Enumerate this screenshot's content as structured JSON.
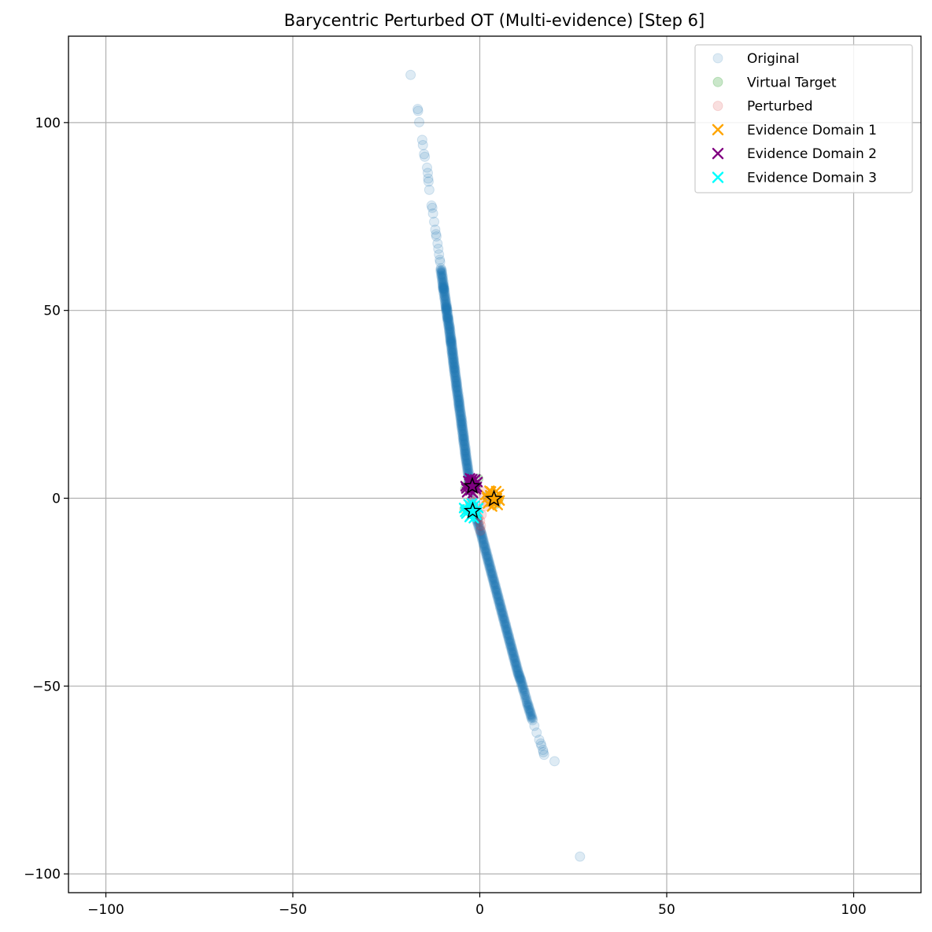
{
  "chart_data": {
    "type": "scatter",
    "title": "Barycentric Perturbed OT (Multi-evidence) [Step 6]",
    "xlabel": "",
    "ylabel": "",
    "xlim": [
      -110,
      118
    ],
    "ylim": [
      -105,
      123
    ],
    "xticks": [
      -100,
      -50,
      0,
      50,
      100
    ],
    "yticks": [
      -100,
      -50,
      0,
      50,
      100
    ],
    "xtick_labels": [
      "−100",
      "−50",
      "0",
      "50",
      "100"
    ],
    "ytick_labels": [
      "−100",
      "−50",
      "0",
      "50",
      "100"
    ],
    "grid": true,
    "legend_position": "top-right",
    "series": [
      {
        "name": "Original",
        "marker": "circle",
        "color": "#1f77b4",
        "opacity": 0.15,
        "points": [
          [
            -18.5,
            112.7
          ],
          [
            -16.6,
            103.6
          ],
          [
            -16.5,
            103.1
          ],
          [
            -16.2,
            100.1
          ],
          [
            -15.4,
            95.4
          ],
          [
            -15.2,
            94.0
          ],
          [
            -14.9,
            91.6
          ],
          [
            -14.7,
            90.9
          ],
          [
            -14.1,
            88.0
          ],
          [
            -13.9,
            86.6
          ],
          [
            -13.8,
            85.1
          ],
          [
            -13.7,
            84.3
          ],
          [
            -13.5,
            82.1
          ],
          [
            -12.9,
            77.9
          ],
          [
            -12.7,
            77.3
          ],
          [
            -12.5,
            75.8
          ],
          [
            -12.2,
            73.6
          ],
          [
            -11.9,
            71.5
          ],
          [
            -11.7,
            70.3
          ],
          [
            -11.6,
            69.7
          ],
          [
            -11.3,
            67.8
          ],
          [
            -11.1,
            66.4
          ],
          [
            -10.9,
            64.9
          ],
          [
            -10.7,
            63.5
          ],
          [
            -10.6,
            62.9
          ],
          [
            -10.4,
            61.2
          ],
          [
            -10.2,
            59.8
          ],
          [
            -10.0,
            58.4
          ],
          [
            -9.8,
            56.9
          ],
          [
            -9.7,
            56.0
          ],
          [
            -9.6,
            55.4
          ],
          [
            -9.4,
            54.0
          ],
          [
            -9.2,
            52.6
          ],
          [
            -9.0,
            51.2
          ],
          [
            -8.9,
            50.5
          ],
          [
            -8.8,
            49.7
          ],
          [
            -8.6,
            48.3
          ],
          [
            -8.5,
            47.6
          ],
          [
            -8.3,
            46.3
          ],
          [
            -8.1,
            45.2
          ],
          [
            -8.0,
            44.0
          ],
          [
            -7.8,
            42.7
          ],
          [
            -7.7,
            41.8
          ],
          [
            -7.6,
            41.0
          ],
          [
            -7.4,
            39.6
          ],
          [
            -7.3,
            38.5
          ],
          [
            -7.1,
            37.2
          ],
          [
            -7.0,
            36.0
          ],
          [
            -6.8,
            34.8
          ],
          [
            -6.7,
            33.7
          ],
          [
            -6.5,
            32.3
          ],
          [
            -6.3,
            31.0
          ],
          [
            -6.2,
            29.8
          ],
          [
            -6.0,
            28.5
          ],
          [
            -5.8,
            27.1
          ],
          [
            -5.6,
            25.8
          ],
          [
            -5.5,
            24.6
          ],
          [
            -5.3,
            23.3
          ],
          [
            -5.1,
            21.9
          ],
          [
            -4.9,
            20.6
          ],
          [
            -4.8,
            19.4
          ],
          [
            -4.6,
            18.1
          ],
          [
            -4.4,
            16.7
          ],
          [
            -4.3,
            15.5
          ],
          [
            -4.1,
            14.2
          ],
          [
            -3.9,
            12.8
          ],
          [
            -3.8,
            11.6
          ],
          [
            -3.6,
            10.3
          ],
          [
            -3.4,
            9.0
          ],
          [
            -3.2,
            7.6
          ],
          [
            -3.0,
            6.2
          ],
          [
            -2.8,
            4.9
          ],
          [
            -2.6,
            3.6
          ],
          [
            -1.2,
            -4.0
          ],
          [
            -0.8,
            -5.5
          ],
          [
            -0.4,
            -7.0
          ],
          [
            0.2,
            -8.8
          ],
          [
            0.6,
            -10.2
          ],
          [
            1.0,
            -11.8
          ],
          [
            1.4,
            -13.3
          ],
          [
            1.8,
            -14.8
          ],
          [
            2.2,
            -16.3
          ],
          [
            2.6,
            -17.8
          ],
          [
            3.0,
            -19.3
          ],
          [
            3.4,
            -20.8
          ],
          [
            3.8,
            -22.3
          ],
          [
            4.2,
            -23.8
          ],
          [
            4.6,
            -25.3
          ],
          [
            5.0,
            -26.8
          ],
          [
            5.4,
            -28.3
          ],
          [
            5.8,
            -29.8
          ],
          [
            6.2,
            -31.3
          ],
          [
            6.6,
            -32.8
          ],
          [
            7.0,
            -34.3
          ],
          [
            7.4,
            -35.8
          ],
          [
            7.8,
            -37.3
          ],
          [
            8.2,
            -38.8
          ],
          [
            8.6,
            -40.3
          ],
          [
            9.0,
            -41.8
          ],
          [
            9.4,
            -43.3
          ],
          [
            9.8,
            -44.8
          ],
          [
            10.2,
            -46.3
          ],
          [
            10.6,
            -47.5
          ],
          [
            11.0,
            -48.6
          ],
          [
            11.5,
            -50.3
          ],
          [
            12.0,
            -52.0
          ],
          [
            12.6,
            -54.2
          ],
          [
            13.1,
            -55.8
          ],
          [
            13.6,
            -57.4
          ],
          [
            14.1,
            -59.1
          ],
          [
            14.6,
            -60.6
          ],
          [
            15.2,
            -62.4
          ],
          [
            15.9,
            -64.3
          ],
          [
            16.3,
            -65.3
          ],
          [
            16.5,
            -65.9
          ],
          [
            16.9,
            -67.0
          ],
          [
            17.0,
            -67.6
          ],
          [
            17.2,
            -68.3
          ],
          [
            20.0,
            -70.0
          ],
          [
            26.8,
            -95.4
          ]
        ]
      },
      {
        "name": "Virtual Target",
        "marker": "circle",
        "color": "#2ca02c",
        "opacity": 0.25,
        "points": [
          [
            -3.9,
            2.5
          ],
          [
            -3.2,
            3.8
          ],
          [
            -2.1,
            4.7
          ],
          [
            -1.0,
            3.1
          ],
          [
            -4.1,
            -2.9
          ],
          [
            -3.0,
            -3.4
          ],
          [
            -2.3,
            -1.8
          ],
          [
            3.6,
            1.1
          ],
          [
            5.0,
            -0.3
          ],
          [
            4.3,
            -1.5
          ],
          [
            2.2,
            0.6
          ],
          [
            -0.4,
            5.2
          ]
        ]
      },
      {
        "name": "Perturbed",
        "marker": "circle",
        "color": "#d62728",
        "opacity": 0.15,
        "points": [
          [
            0.1,
            -6.0
          ],
          [
            0.3,
            -7.3
          ],
          [
            0.2,
            -8.6
          ],
          [
            -0.4,
            -5.1
          ],
          [
            0.5,
            -4.4
          ],
          [
            1.3,
            -2.1
          ],
          [
            -1.5,
            1.3
          ],
          [
            2.6,
            0.4
          ],
          [
            -2.4,
            -0.7
          ],
          [
            0.8,
            1.7
          ],
          [
            -0.8,
            -2.8
          ],
          [
            1.7,
            -1.0
          ]
        ]
      },
      {
        "name": "Evidence Domain 1",
        "marker": "x",
        "color": "#ffa500",
        "points": [
          [
            1.5,
            0.9
          ],
          [
            2.2,
            -1.4
          ],
          [
            3.0,
            1.8
          ],
          [
            3.6,
            -0.4
          ],
          [
            4.2,
            0.5
          ],
          [
            4.8,
            -1.8
          ],
          [
            5.1,
            1.1
          ],
          [
            2.6,
            2.0
          ],
          [
            3.3,
            -2.2
          ],
          [
            4.4,
            1.9
          ],
          [
            2.0,
            0.1
          ],
          [
            5.3,
            -0.6
          ],
          [
            3.9,
            -1.1
          ],
          [
            2.8,
            0.8
          ],
          [
            4.6,
            0.0
          ],
          [
            3.1,
            -0.9
          ]
        ]
      },
      {
        "name": "Evidence Domain 2",
        "marker": "x",
        "color": "#800080",
        "points": [
          [
            -3.8,
            3.2
          ],
          [
            -3.1,
            4.6
          ],
          [
            -2.5,
            2.1
          ],
          [
            -2.0,
            5.1
          ],
          [
            -1.5,
            3.6
          ],
          [
            -1.0,
            2.4
          ],
          [
            -0.6,
            4.3
          ],
          [
            -3.4,
            1.6
          ],
          [
            -2.8,
            3.9
          ],
          [
            -1.8,
            1.4
          ],
          [
            -1.2,
            5.0
          ],
          [
            -0.8,
            3.0
          ],
          [
            -2.3,
            4.4
          ],
          [
            -3.6,
            2.6
          ],
          [
            -1.6,
            2.8
          ],
          [
            -2.6,
            5.3
          ]
        ]
      },
      {
        "name": "Evidence Domain 3",
        "marker": "x",
        "color": "#00ffff",
        "points": [
          [
            -4.2,
            -2.6
          ],
          [
            -3.6,
            -4.1
          ],
          [
            -3.0,
            -1.6
          ],
          [
            -2.4,
            -4.6
          ],
          [
            -1.9,
            -3.1
          ],
          [
            -1.4,
            -2.0
          ],
          [
            -0.9,
            -4.4
          ],
          [
            -0.4,
            -2.6
          ],
          [
            -3.3,
            -3.0
          ],
          [
            -2.7,
            -5.0
          ],
          [
            -1.6,
            -5.3
          ],
          [
            -0.7,
            -3.6
          ],
          [
            -2.1,
            -1.4
          ],
          [
            -3.9,
            -3.6
          ],
          [
            -1.2,
            -3.9
          ],
          [
            -2.5,
            -2.4
          ]
        ]
      }
    ],
    "centroids": [
      {
        "marker": "star",
        "color": "#ffa500",
        "x": 3.8,
        "y": -0.2
      },
      {
        "marker": "star",
        "color": "#800080",
        "x": -2.0,
        "y": 3.2
      },
      {
        "marker": "star",
        "color": "#00ffff",
        "x": -1.9,
        "y": -3.4
      }
    ]
  }
}
